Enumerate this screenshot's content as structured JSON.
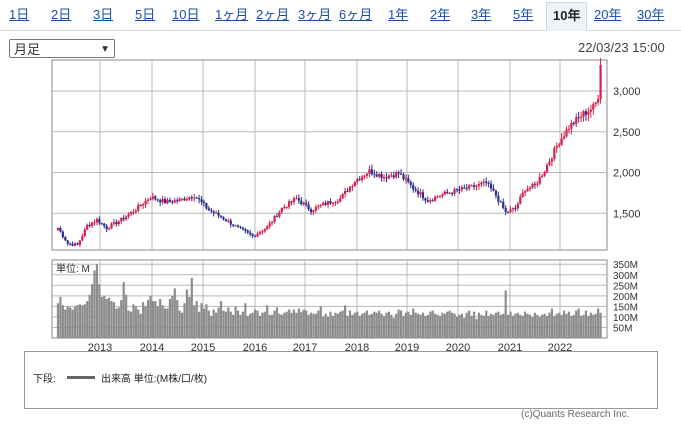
{
  "tabs": [
    {
      "label": "1日"
    },
    {
      "label": "2日"
    },
    {
      "label": "3日"
    },
    {
      "label": "5日"
    },
    {
      "label": "10日"
    },
    {
      "label": "1ヶ月"
    },
    {
      "label": "2ヶ月"
    },
    {
      "label": "3ヶ月"
    },
    {
      "label": "6ヶ月"
    },
    {
      "label": "1年"
    },
    {
      "label": "2年"
    },
    {
      "label": "3年"
    },
    {
      "label": "5年"
    },
    {
      "label": "10年",
      "active": true
    },
    {
      "label": "20年"
    },
    {
      "label": "30年"
    }
  ],
  "period_select": {
    "value": "月足"
  },
  "timestamp": "22/03/23 15:00",
  "colors": {
    "up": "#d61f4e",
    "down": "#2b2e8f",
    "volume": "#8c8c8c",
    "grid": "#b8b8b8",
    "tab_link": "#1a4fa0"
  },
  "volume_panel": {
    "unit_label": "単位: M"
  },
  "legend": {
    "prefix": "下段:",
    "series_name": "出来高 単位:(M株/口/枚)"
  },
  "credit": "(c)Quants Research Inc.",
  "chart_data": {
    "type": "candlestick",
    "price_axis": {
      "ticks": [
        1500,
        2000,
        2500,
        3000
      ],
      "tick_labels": [
        "1,500",
        "2,000",
        "2,500",
        "3,000"
      ],
      "ylim": [
        1050,
        3380
      ]
    },
    "volume_axis": {
      "ticks": [
        50,
        100,
        150,
        200,
        250,
        300,
        350
      ],
      "tick_labels": [
        "50M",
        "100M",
        "150M",
        "200M",
        "250M",
        "300M",
        "350M"
      ],
      "ylim": [
        0,
        370
      ]
    },
    "x_axis": {
      "labels": [
        "2013",
        "2014",
        "2015",
        "2016",
        "2017",
        "2018",
        "2019",
        "2020",
        "2021",
        "2022"
      ]
    },
    "grid": true,
    "anchors": [
      [
        0,
        1320
      ],
      [
        4,
        1130
      ],
      [
        8,
        1110
      ],
      [
        12,
        1350
      ],
      [
        16,
        1420
      ],
      [
        20,
        1320
      ],
      [
        26,
        1420
      ],
      [
        32,
        1550
      ],
      [
        38,
        1700
      ],
      [
        44,
        1640
      ],
      [
        50,
        1660
      ],
      [
        56,
        1720
      ],
      [
        62,
        1540
      ],
      [
        68,
        1440
      ],
      [
        74,
        1320
      ],
      [
        80,
        1220
      ],
      [
        86,
        1330
      ],
      [
        92,
        1560
      ],
      [
        98,
        1680
      ],
      [
        104,
        1540
      ],
      [
        110,
        1620
      ],
      [
        116,
        1680
      ],
      [
        122,
        1900
      ],
      [
        128,
        2020
      ],
      [
        134,
        1950
      ],
      [
        140,
        1990
      ],
      [
        146,
        1810
      ],
      [
        152,
        1660
      ],
      [
        158,
        1730
      ],
      [
        164,
        1780
      ],
      [
        170,
        1820
      ],
      [
        176,
        1870
      ],
      [
        180,
        1720
      ],
      [
        184,
        1510
      ],
      [
        188,
        1560
      ],
      [
        192,
        1800
      ],
      [
        196,
        1840
      ],
      [
        200,
        2030
      ],
      [
        206,
        2380
      ],
      [
        210,
        2560
      ],
      [
        216,
        2720
      ],
      [
        220,
        2800
      ],
      [
        222,
        2900
      ],
      [
        223,
        3320
      ]
    ],
    "volume_values": [
      165,
      195,
      155,
      135,
      150,
      145,
      135,
      150,
      155,
      160,
      155,
      160,
      175,
      205,
      255,
      320,
      350,
      255,
      195,
      200,
      185,
      190,
      175,
      170,
      140,
      145,
      180,
      265,
      205,
      130,
      125,
      160,
      150,
      135,
      115,
      170,
      150,
      180,
      200,
      175,
      175,
      150,
      185,
      155,
      140,
      140,
      185,
      200,
      235,
      180,
      130,
      120,
      165,
      230,
      195,
      285,
      155,
      175,
      125,
      165,
      140,
      160,
      130,
      105,
      135,
      120,
      145,
      175,
      130,
      125,
      145,
      125,
      110,
      150,
      130,
      110,
      125,
      165,
      105,
      115,
      120,
      135,
      130,
      105,
      120,
      125,
      155,
      110,
      110,
      130,
      145,
      115,
      110,
      120,
      125,
      135,
      120,
      135,
      120,
      140,
      125,
      135,
      130,
      110,
      120,
      115,
      115,
      130,
      150,
      100,
      115,
      100,
      125,
      105,
      120,
      115,
      125,
      130,
      155,
      105,
      130,
      110,
      120,
      125,
      105,
      115,
      120,
      130,
      110,
      115,
      125,
      120,
      130,
      115,
      105,
      120,
      125,
      110,
      95,
      115,
      135,
      130,
      105,
      120,
      125,
      110,
      140,
      120,
      115,
      110,
      120,
      105,
      110,
      125,
      130,
      115,
      110,
      105,
      120,
      115,
      125,
      130,
      120,
      115,
      100,
      110,
      115,
      95,
      120,
      130,
      105,
      125,
      90,
      120,
      110,
      105,
      130,
      105,
      115,
      110,
      120,
      125,
      110,
      115,
      225,
      110,
      125,
      105,
      115,
      120,
      110,
      105,
      125,
      115,
      110,
      100,
      120,
      110,
      100,
      110,
      115,
      105,
      120,
      140,
      105,
      115,
      120,
      110,
      130,
      115,
      125,
      105,
      110,
      130,
      140,
      105,
      110,
      130,
      105,
      120,
      110,
      115,
      140,
      120,
      110,
      100,
      115,
      115,
      120,
      110
    ]
  }
}
